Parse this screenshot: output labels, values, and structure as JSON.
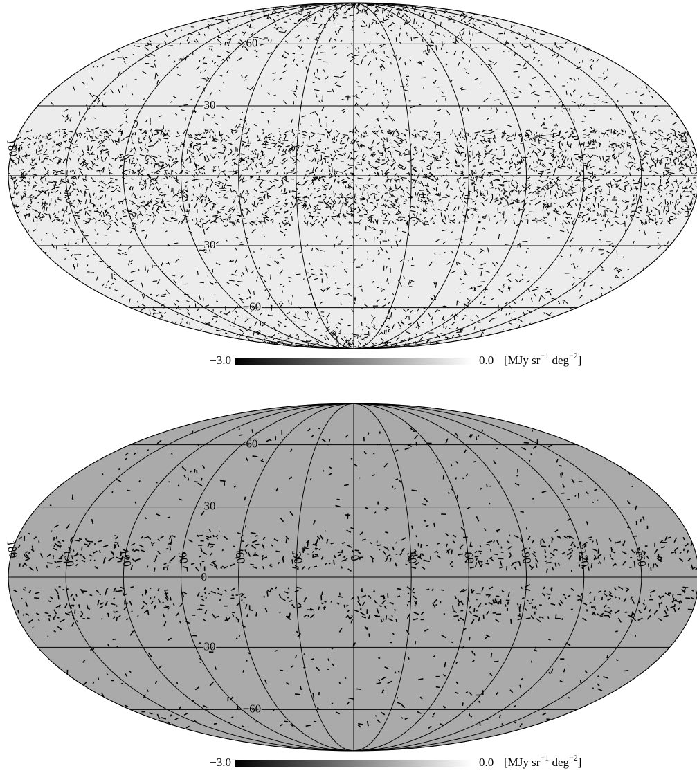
{
  "maps": [
    {
      "background": "#ececec",
      "meridians": [
        -180,
        -150,
        -120,
        -90,
        -60,
        -30,
        0,
        30,
        60,
        90,
        120,
        150,
        180
      ],
      "parallels": [
        60,
        30,
        0,
        -30,
        -60
      ],
      "lat_labels": [
        {
          "value": 60,
          "label": "60"
        },
        {
          "value": 30,
          "label": "30"
        },
        {
          "value": -30,
          "label": "30"
        },
        {
          "value": -60,
          "label": "−60"
        }
      ],
      "lon_labels": [
        {
          "value": 180,
          "label": "180"
        }
      ],
      "colorbar": {
        "min": {
          "value": -3.0,
          "label": "−3.0"
        },
        "max": {
          "value": 0.0,
          "label": "0.0"
        },
        "unit": {
          "pre": "[MJy sr",
          "exp1": "−1",
          "mid": " deg",
          "exp2": "−2",
          "post": "]"
        }
      }
    },
    {
      "background": "#aaaaaa",
      "meridians": [
        -180,
        -150,
        -120,
        -90,
        -60,
        -30,
        0,
        30,
        60,
        90,
        120,
        150,
        180
      ],
      "parallels": [
        60,
        30,
        0,
        -30,
        -60
      ],
      "lat_labels": [
        {
          "value": 60,
          "label": "60"
        },
        {
          "value": 30,
          "label": "30"
        },
        {
          "value": 0,
          "label": "0"
        },
        {
          "value": -30,
          "label": "30"
        },
        {
          "value": -60,
          "label": "−60"
        }
      ],
      "lon_labels": [
        {
          "value": 180,
          "label": "180"
        },
        {
          "value": 150,
          "label": "150"
        },
        {
          "value": 120,
          "label": "120"
        },
        {
          "value": 90,
          "label": "90"
        },
        {
          "value": 60,
          "label": "60"
        },
        {
          "value": 30,
          "label": "30"
        },
        {
          "value": 0,
          "label": "0"
        },
        {
          "value": -30,
          "label": "30"
        },
        {
          "value": -60,
          "label": "60"
        },
        {
          "value": -90,
          "label": "90"
        },
        {
          "value": -120,
          "label": "120"
        },
        {
          "value": -150,
          "label": "150"
        }
      ],
      "colorbar": {
        "min": {
          "value": -3.0,
          "label": "−3.0"
        },
        "max": {
          "value": 0.0,
          "label": "0.0"
        },
        "unit": {
          "pre": "[MJy sr",
          "exp1": "−1",
          "mid": " deg",
          "exp2": "−2",
          "post": "]"
        }
      }
    }
  ]
}
